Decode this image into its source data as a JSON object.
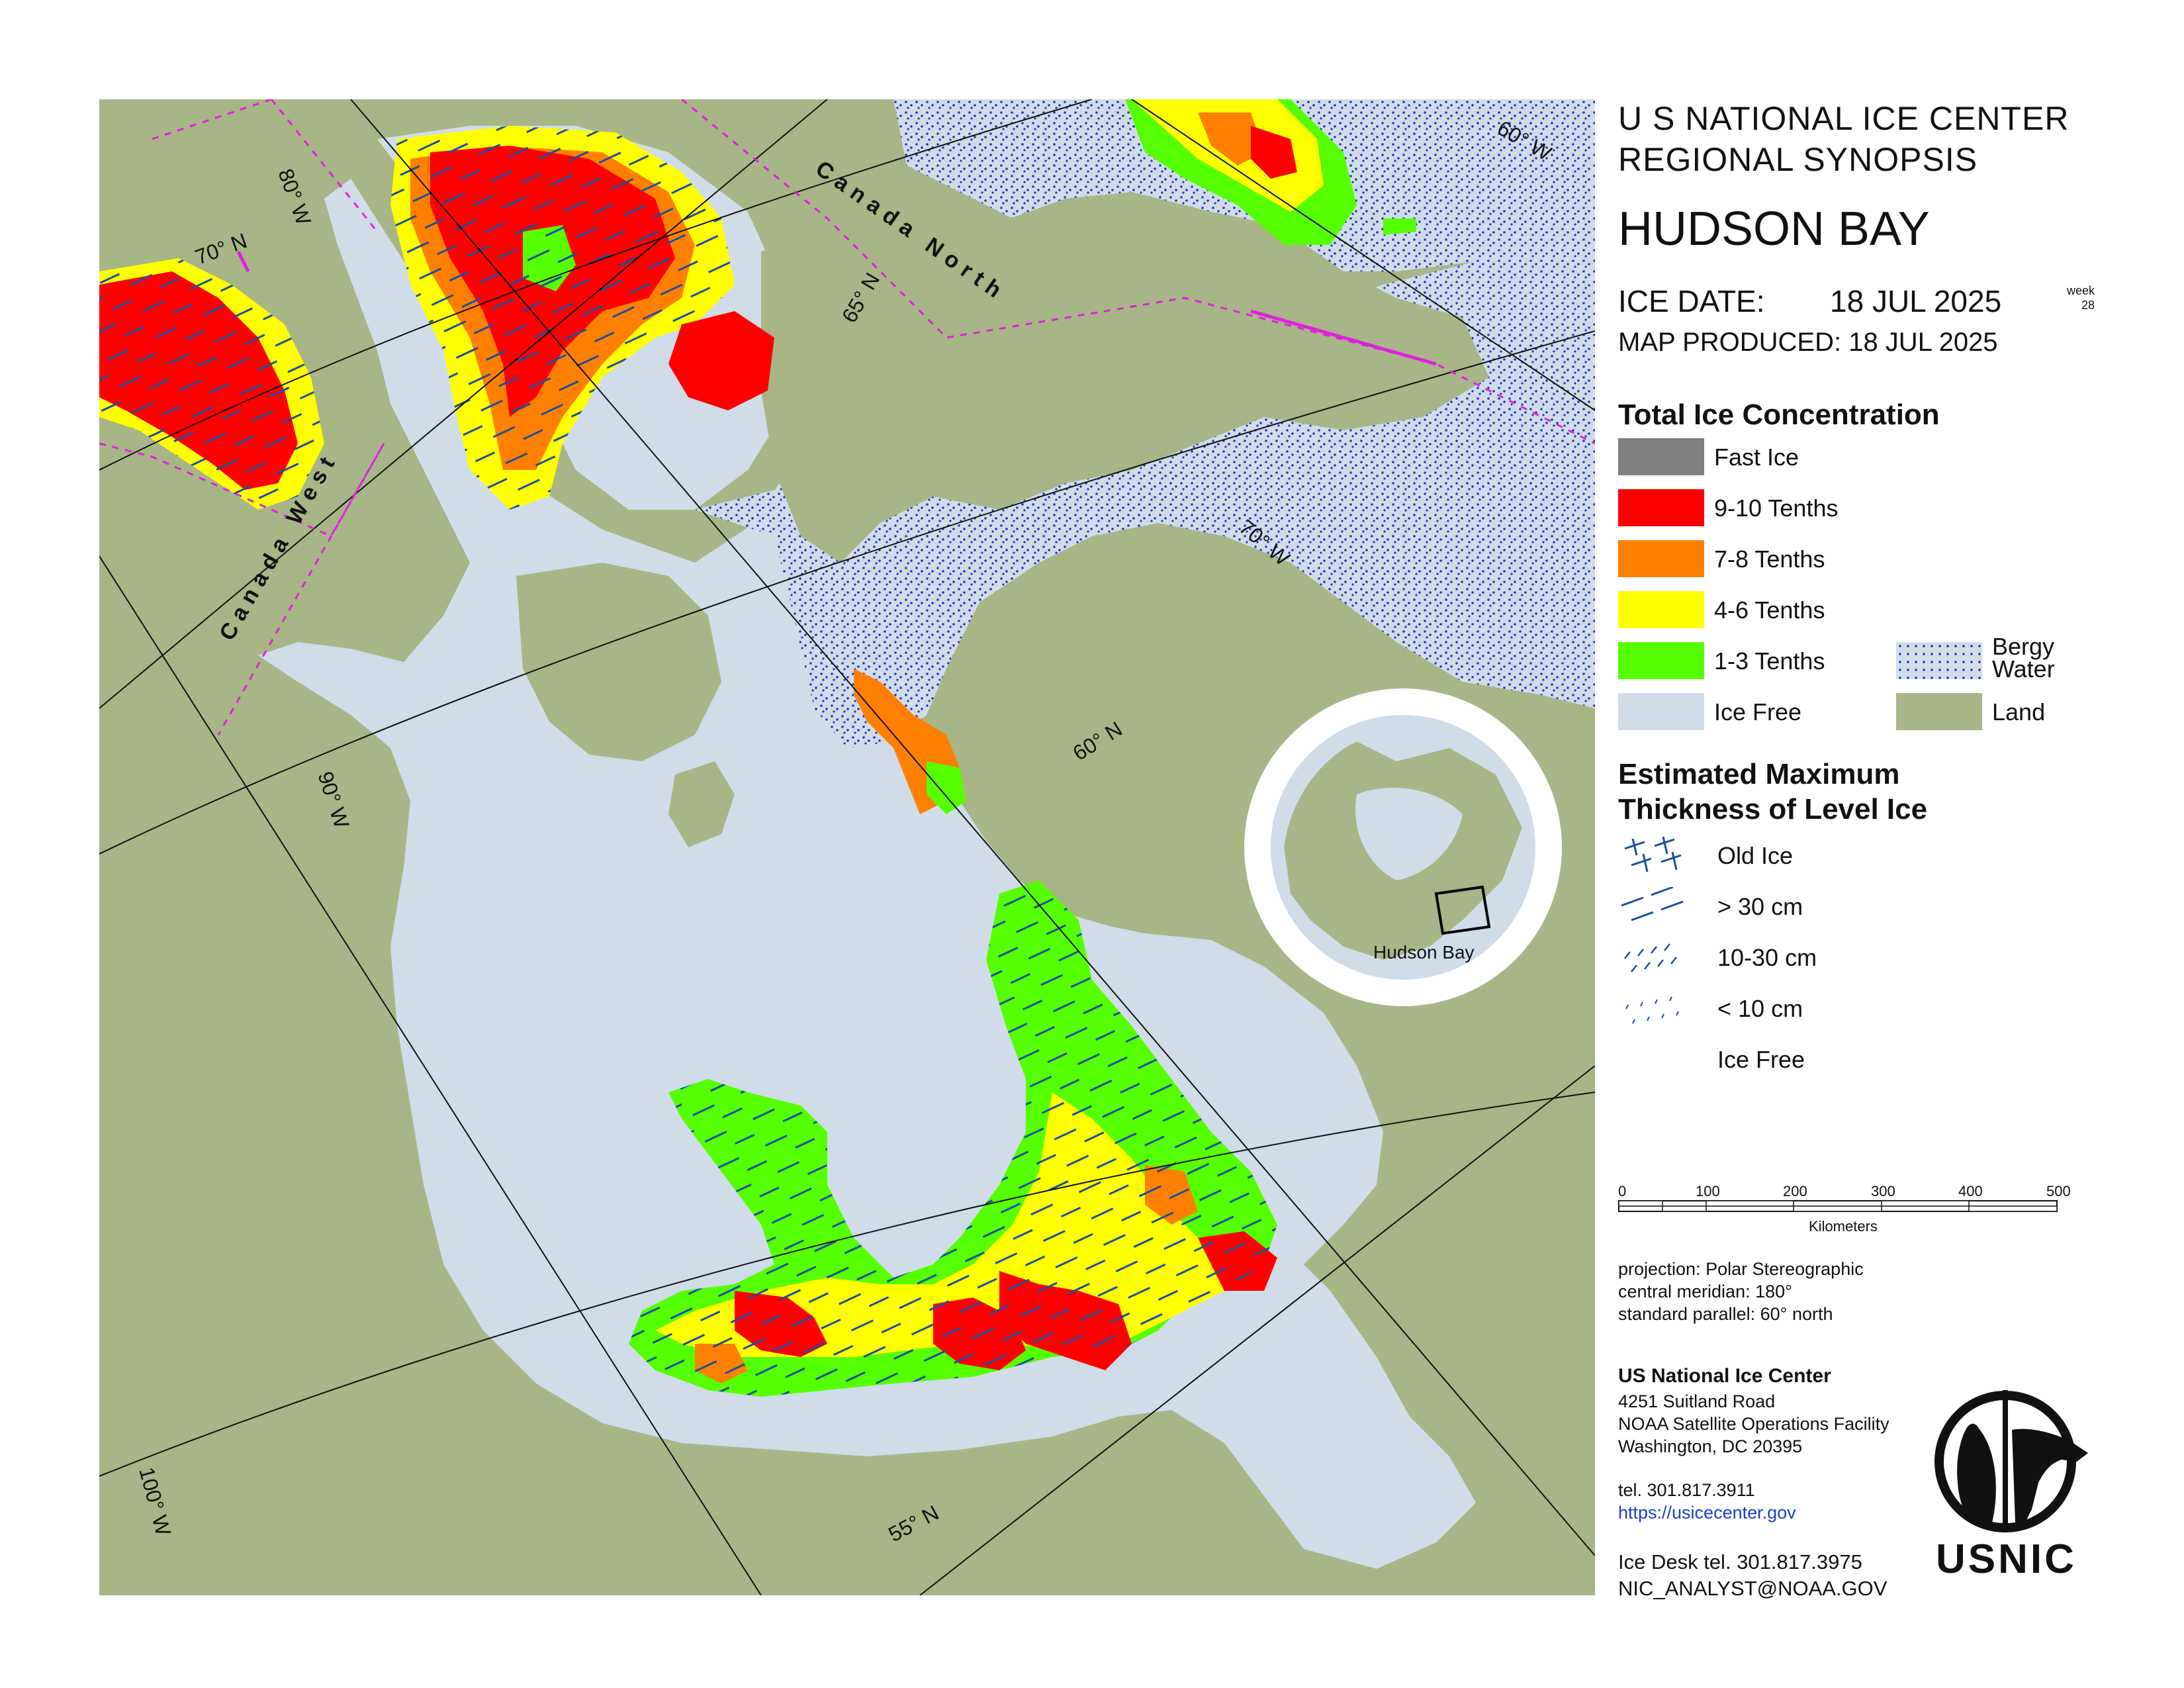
{
  "header": {
    "line1": "U S NATIONAL ICE CENTER",
    "line2": "REGIONAL SYNOPSIS",
    "title": "HUDSON BAY",
    "ice_date_label": "ICE DATE:",
    "ice_date": "18 JUL 2025",
    "week_label": "week",
    "week_number": "28",
    "map_produced": "MAP PRODUCED:  18 JUL 2025"
  },
  "legend": {
    "concentration_title": "Total Ice Concentration",
    "concentration": [
      {
        "label": "Fast Ice",
        "color": "#808080"
      },
      {
        "label": "9-10 Tenths",
        "color": "#ff0000"
      },
      {
        "label": "7-8 Tenths",
        "color": "#ff8000"
      },
      {
        "label": "4-6 Tenths",
        "color": "#ffff00"
      },
      {
        "label": "1-3 Tenths",
        "color": "#55ff00"
      },
      {
        "label": "Ice Free",
        "color": "#d0dde9"
      }
    ],
    "bergy": {
      "label1": "Bergy",
      "label2": "Water",
      "color": "#d0dde9",
      "dot_color": "#2233bb"
    },
    "land": {
      "label": "Land",
      "color": "#a8b587"
    },
    "thickness_title1": "Estimated Maximum",
    "thickness_title2": "Thickness of Level Ice",
    "thickness": [
      {
        "label": "Old Ice",
        "icon": "crosshatch-dash-icon"
      },
      {
        "label": "> 30 cm",
        "icon": "long-dash-icon"
      },
      {
        "label": "10-30 cm",
        "icon": "short-dash-icon"
      },
      {
        "label": "< 10 cm",
        "icon": "dot-dash-icon"
      },
      {
        "label": "Ice Free",
        "icon": "none"
      }
    ]
  },
  "scale": {
    "ticks": [
      "0",
      "100",
      "200",
      "300",
      "400",
      "500"
    ],
    "unit": "Kilometers"
  },
  "projection": {
    "line1": "projection: Polar Stereographic",
    "line2": "central meridian: 180°",
    "line3": "standard parallel:  60° north"
  },
  "contact": {
    "org": "US National Ice Center",
    "address1": "4251 Suitland Road",
    "address2": "NOAA Satellite Operations Facility",
    "address3": "Washington, DC  20395",
    "tel": "tel. 301.817.3911",
    "url": "https://usicecenter.gov",
    "desk_tel": "Ice Desk tel. 301.817.3975",
    "email": "NIC_ANALYST@NOAA.GOV"
  },
  "logo": {
    "text": "USNIC"
  },
  "inset": {
    "label": "Hudson Bay"
  },
  "map_labels": {
    "lat_55": "55° N",
    "lat_60": "60° N",
    "lat_65": "65° N",
    "lat_70_left": "70° N",
    "lat_70_right": "70° W",
    "lon_60": "60° W",
    "lon_80": "80° W",
    "lon_90": "90° W",
    "lon_100": "100° W",
    "region_north": "Canada North",
    "region_west": "Canada West"
  },
  "colors": {
    "land": "#a8b587",
    "water": "#d0dde9",
    "red": "#ff0000",
    "orange": "#ff8000",
    "yellow": "#ffff00",
    "green": "#55ff00",
    "dash": "#1a4fa0",
    "boundary": "#e020e0"
  }
}
